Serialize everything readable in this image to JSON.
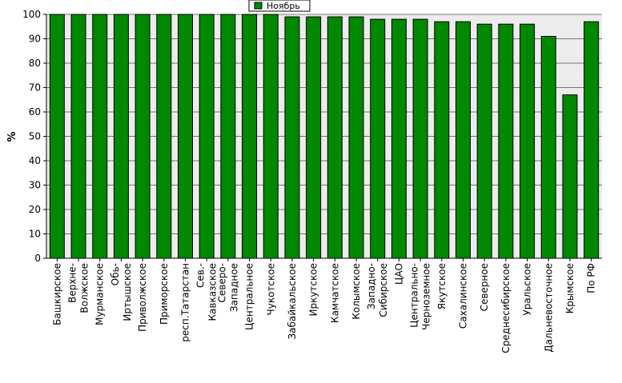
{
  "chart_data": {
    "type": "bar",
    "title": "",
    "xlabel": "",
    "ylabel": "%",
    "ylim": [
      0,
      100
    ],
    "yticks": [
      0,
      10,
      20,
      30,
      40,
      50,
      60,
      70,
      80,
      90,
      100
    ],
    "grid": true,
    "legend_position": "top-center",
    "series": [
      {
        "name": "Ноябрь",
        "color": "#008800",
        "values": [
          100,
          100,
          100,
          100,
          100,
          100,
          100,
          100,
          100,
          100,
          100,
          99,
          99,
          99,
          99,
          98,
          98,
          98,
          97,
          97,
          96,
          96,
          96,
          91,
          67,
          97
        ]
      }
    ],
    "categories": [
      [
        "Башкирское"
      ],
      [
        "Верхне-",
        "Волжское"
      ],
      [
        "Мурманское"
      ],
      [
        "Обь-",
        "Иртышское"
      ],
      [
        "Приволжское"
      ],
      [
        "Приморское"
      ],
      [
        "респ.Татарстан"
      ],
      [
        "Сев.-",
        "Кавказское"
      ],
      [
        "Северо-",
        "Западное"
      ],
      [
        "Центральное"
      ],
      [
        "Чукотское"
      ],
      [
        "Забайкальское"
      ],
      [
        "Иркутское"
      ],
      [
        "Камчатское"
      ],
      [
        "Колымское"
      ],
      [
        "Западно-",
        "Сибирское"
      ],
      [
        "ЦАО"
      ],
      [
        "Центрально-",
        "Черноземное"
      ],
      [
        "Якутское"
      ],
      [
        "Сахалинское"
      ],
      [
        "Северное"
      ],
      [
        "Среднесибирское"
      ],
      [
        "Уральское"
      ],
      [
        "Дальневосточное"
      ],
      [
        "Крымское"
      ],
      [
        "По РФ"
      ]
    ]
  }
}
